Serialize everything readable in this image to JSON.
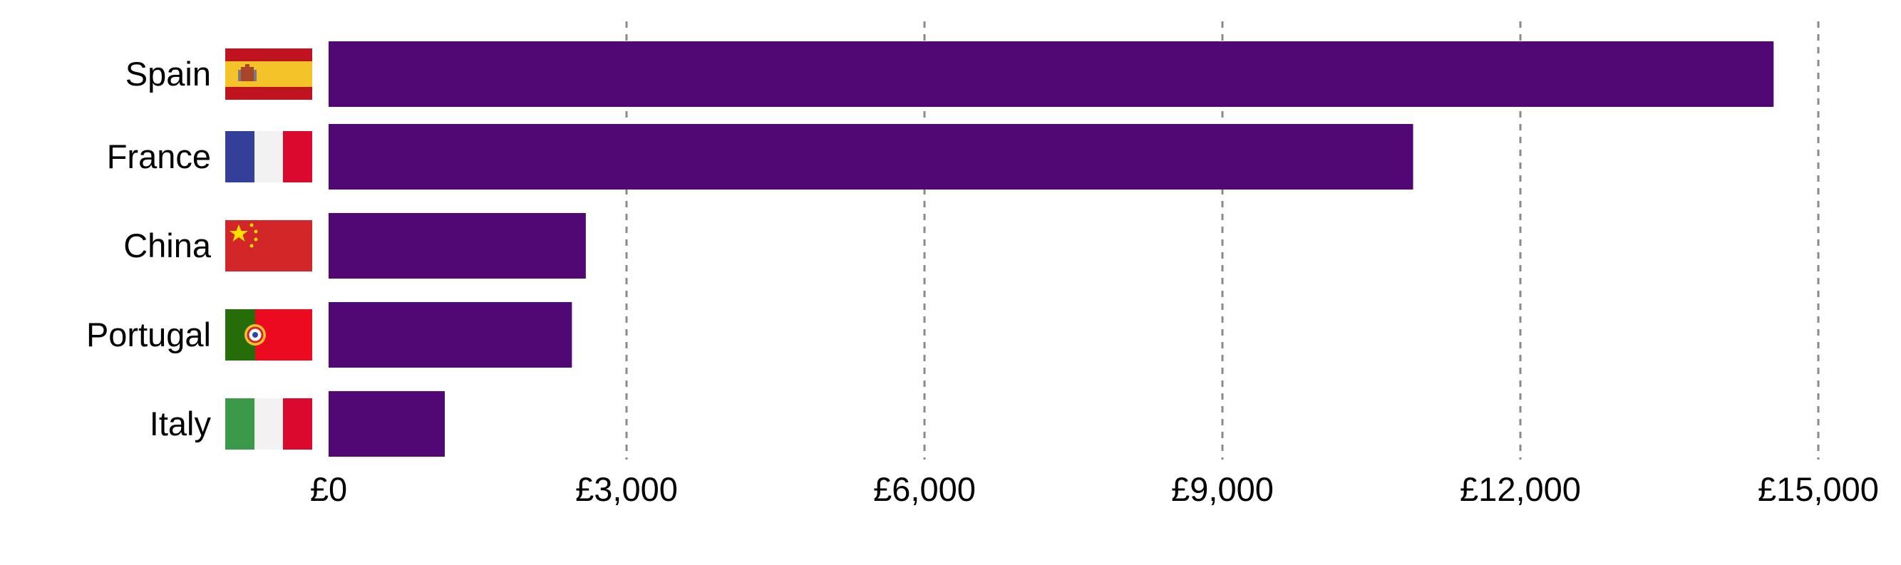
{
  "chart_data": {
    "type": "bar",
    "orientation": "horizontal",
    "categories": [
      "Spain",
      "France",
      "China",
      "Portugal",
      "Italy"
    ],
    "values": [
      14550,
      10920,
      2590,
      2450,
      1170
    ],
    "x_ticks": [
      0,
      3000,
      6000,
      9000,
      12000,
      15000
    ],
    "x_tick_labels": [
      "£0",
      "£3,000",
      "£6,000",
      "£9,000",
      "£12,000",
      "£15,000"
    ],
    "xlim": [
      0,
      15000
    ],
    "title": "",
    "xlabel": "",
    "ylabel": "",
    "grid": "vertical dashed",
    "legend": "none",
    "flags": [
      "spain-flag",
      "france-flag",
      "china-flag",
      "portugal-flag",
      "italy-flag"
    ],
    "colors": {
      "bar": "#520874",
      "grid": "#8a8a8a"
    }
  }
}
